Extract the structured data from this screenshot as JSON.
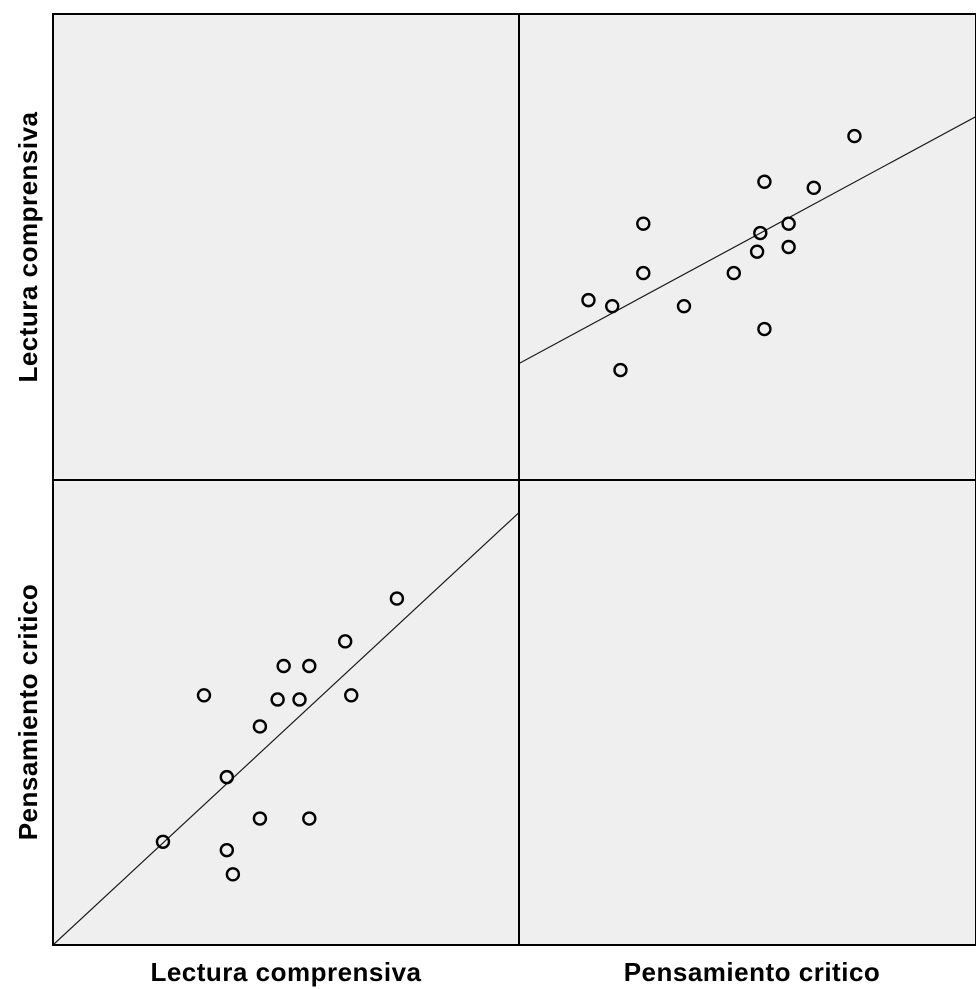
{
  "chart_data": {
    "type": "scatter",
    "variables": [
      "Lectura comprensiva",
      "Pensamiento critico"
    ],
    "grid": false,
    "panel_background": "#efefef",
    "point_color": "#000000",
    "fit_line": "linear",
    "lower_left": {
      "xlabel": "Lectura comprensiva",
      "ylabel": "Pensamiento critico",
      "xlim": [
        0,
        100
      ],
      "ylim": [
        0,
        100
      ],
      "fit_line_endpoints": [
        [
          0,
          0
        ],
        [
          100,
          93
        ]
      ],
      "points": [
        [
          23.6,
          22.2
        ],
        [
          32.4,
          53.7
        ],
        [
          37.3,
          36.1
        ],
        [
          37.3,
          20.4
        ],
        [
          38.6,
          15.2
        ],
        [
          44.4,
          47.0
        ],
        [
          44.4,
          27.2
        ],
        [
          48.2,
          52.8
        ],
        [
          49.5,
          60.0
        ],
        [
          52.9,
          52.8
        ],
        [
          55.0,
          60.0
        ],
        [
          55.0,
          27.2
        ],
        [
          62.7,
          65.3
        ],
        [
          64.0,
          53.7
        ],
        [
          73.8,
          74.5
        ]
      ]
    },
    "upper_right": {
      "xlabel": "Pensamiento critico",
      "ylabel": "Lectura comprensiva",
      "xlim": [
        0,
        100
      ],
      "ylim": [
        0,
        100
      ],
      "fit_line_endpoints": [
        [
          0,
          25
        ],
        [
          100,
          78
        ]
      ],
      "points": [
        [
          15.2,
          38.6
        ],
        [
          20.4,
          37.3
        ],
        [
          22.2,
          23.6
        ],
        [
          27.2,
          44.4
        ],
        [
          27.2,
          55.0
        ],
        [
          36.1,
          37.3
        ],
        [
          47.0,
          44.4
        ],
        [
          52.1,
          49.0
        ],
        [
          52.8,
          53.0
        ],
        [
          53.7,
          64.0
        ],
        [
          53.7,
          32.4
        ],
        [
          59.0,
          55.0
        ],
        [
          59.0,
          50.0
        ],
        [
          64.5,
          62.7
        ],
        [
          73.4,
          73.8
        ]
      ]
    }
  }
}
